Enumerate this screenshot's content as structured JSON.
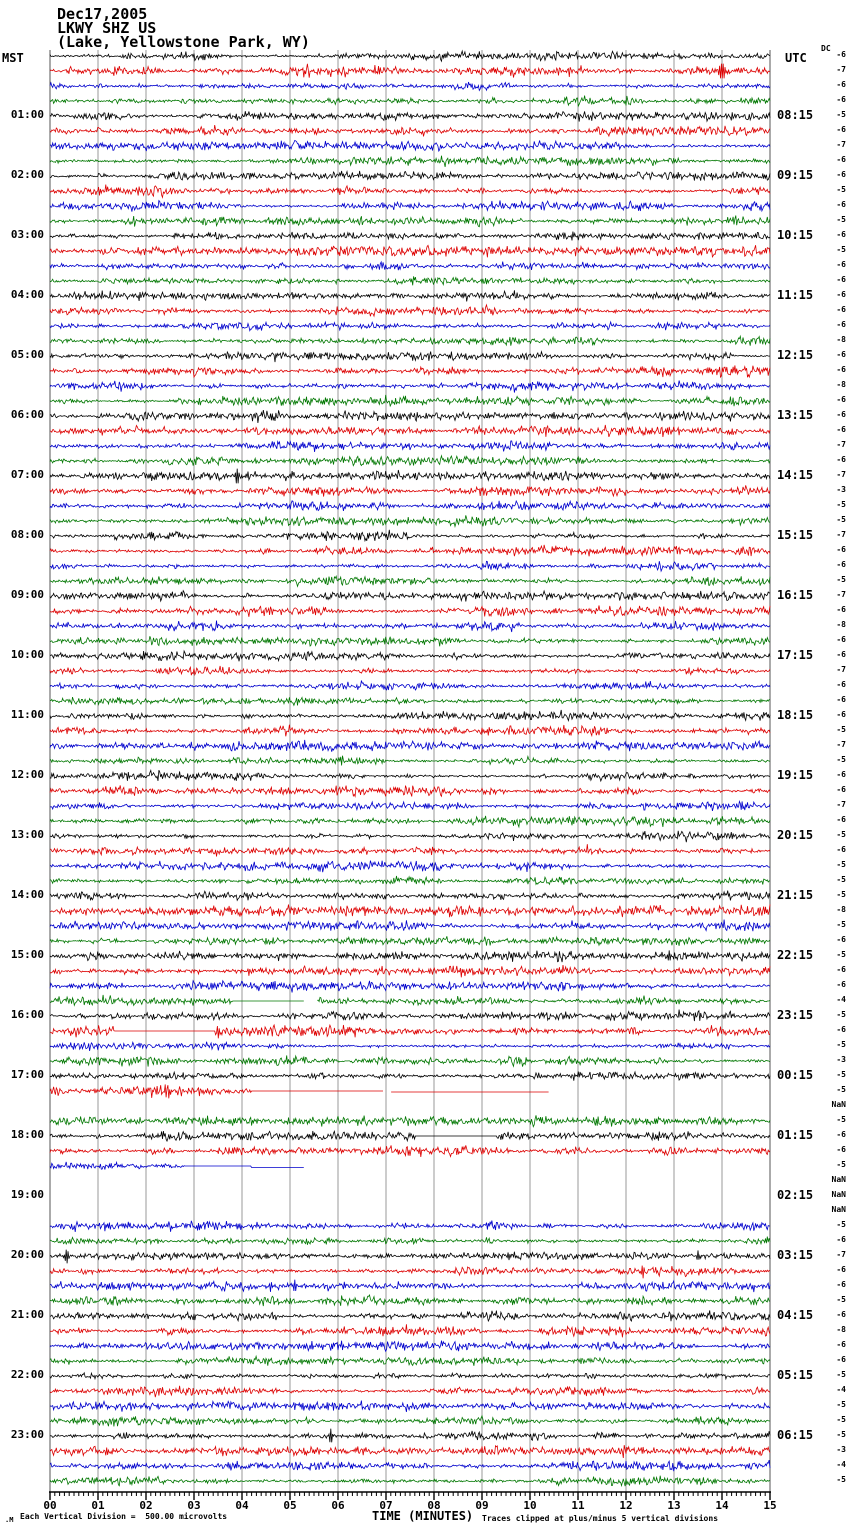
{
  "header": {
    "date": "Dec17,2005",
    "station": "LKWY SHZ US",
    "location": "(Lake, Yellowstone Park, WY)"
  },
  "columns": {
    "left_header": "MST",
    "right_header": "UTC",
    "dc_header": "DC"
  },
  "footer": {
    "corner_glyph": ".M",
    "scale_note": "Each Vertical Division =  500.00 microvolts",
    "axis_label": "TIME (MINUTES)",
    "clip_note": "Traces clipped at plus/minus 5 vertical divisions"
  },
  "chart_data": {
    "type": "line",
    "subtype": "helicorder-seismogram",
    "title": "LKWY SHZ US (Lake, Yellowstone Park, WY) Dec17,2005",
    "xlabel": "TIME (MINUTES)",
    "x_range_minutes": [
      0,
      15
    ],
    "x_ticks": [
      "00",
      "01",
      "02",
      "03",
      "04",
      "05",
      "06",
      "07",
      "08",
      "09",
      "10",
      "11",
      "12",
      "13",
      "14",
      "15"
    ],
    "minor_ticks_per_minute": 10,
    "minutes_per_row": 15,
    "grid": "vertical lines every minute",
    "scale": "Each Vertical Division = 500.00 microvolts",
    "clip": "Traces clipped at plus/minus 5 vertical divisions",
    "trace_colors": {
      "black": "#000000",
      "red": "#dd0000",
      "blue": "#0000cc",
      "green": "#007700"
    },
    "color_cycle": [
      "black",
      "red",
      "blue",
      "green"
    ],
    "rows": [
      {
        "dc": "-6"
      },
      {
        "dc": "-7",
        "ev": [
          {
            "t": "spike",
            "m": 14.0,
            "amp": 13,
            "w": 0.1
          }
        ]
      },
      {
        "dc": "-6"
      },
      {
        "dc": "-6"
      },
      {
        "mst": "01:00",
        "utc": "08:15",
        "dc": "-5"
      },
      {
        "dc": "-6"
      },
      {
        "dc": "-7"
      },
      {
        "dc": "-6"
      },
      {
        "mst": "02:00",
        "utc": "09:15",
        "dc": "-6"
      },
      {
        "dc": "-5"
      },
      {
        "dc": "-6"
      },
      {
        "dc": "-5"
      },
      {
        "mst": "03:00",
        "utc": "10:15",
        "dc": "-6"
      },
      {
        "dc": "-5"
      },
      {
        "dc": "-6"
      },
      {
        "dc": "-6"
      },
      {
        "mst": "04:00",
        "utc": "11:15",
        "dc": "-6"
      },
      {
        "dc": "-6"
      },
      {
        "dc": "-6"
      },
      {
        "dc": "-8"
      },
      {
        "mst": "05:00",
        "utc": "12:15",
        "dc": "-6"
      },
      {
        "dc": "-6"
      },
      {
        "dc": "-8"
      },
      {
        "dc": "-6"
      },
      {
        "mst": "06:00",
        "utc": "13:15",
        "dc": "-6",
        "ev": [
          {
            "t": "burst",
            "a": 4.2,
            "b": 5.2,
            "k": 1.7
          }
        ]
      },
      {
        "dc": "-6"
      },
      {
        "dc": "-7"
      },
      {
        "dc": "-6"
      },
      {
        "mst": "07:00",
        "utc": "14:15",
        "dc": "-7",
        "ev": [
          {
            "t": "spike",
            "m": 3.9,
            "amp": 11,
            "w": 0.06
          }
        ]
      },
      {
        "dc": "-3"
      },
      {
        "dc": "-5"
      },
      {
        "dc": "-5"
      },
      {
        "mst": "08:00",
        "utc": "15:15",
        "dc": "-7"
      },
      {
        "dc": "-6"
      },
      {
        "dc": "-6"
      },
      {
        "dc": "-5"
      },
      {
        "mst": "09:00",
        "utc": "16:15",
        "dc": "-7"
      },
      {
        "dc": "-6"
      },
      {
        "dc": "-8"
      },
      {
        "dc": "-6"
      },
      {
        "mst": "10:00",
        "utc": "17:15",
        "dc": "-6"
      },
      {
        "dc": "-7"
      },
      {
        "dc": "-6"
      },
      {
        "dc": "-6"
      },
      {
        "mst": "11:00",
        "utc": "18:15",
        "dc": "-6"
      },
      {
        "dc": "-5"
      },
      {
        "dc": "-7"
      },
      {
        "dc": "-5"
      },
      {
        "mst": "12:00",
        "utc": "19:15",
        "dc": "-6"
      },
      {
        "dc": "-6"
      },
      {
        "dc": "-7"
      },
      {
        "dc": "-6"
      },
      {
        "mst": "13:00",
        "utc": "20:15",
        "dc": "-5"
      },
      {
        "dc": "-6"
      },
      {
        "dc": "-5"
      },
      {
        "dc": "-5"
      },
      {
        "mst": "14:00",
        "utc": "21:15",
        "dc": "-5"
      },
      {
        "dc": "-8"
      },
      {
        "dc": "-5"
      },
      {
        "dc": "-6"
      },
      {
        "mst": "15:00",
        "utc": "22:15",
        "dc": "-5",
        "ev": [
          {
            "t": "spike",
            "m": 12.9,
            "amp": 7,
            "w": 0.05
          }
        ]
      },
      {
        "dc": "-6"
      },
      {
        "dc": "-6"
      },
      {
        "dc": "-4",
        "ev": [
          {
            "t": "flat",
            "a": 3.8,
            "b": 5.3
          },
          {
            "t": "blank",
            "a": 5.3,
            "b": 5.55
          }
        ]
      },
      {
        "mst": "16:00",
        "utc": "23:15",
        "dc": "-5",
        "ev": [
          {
            "t": "burst",
            "a": 13.0,
            "b": 14.2,
            "k": 1.7
          }
        ]
      },
      {
        "dc": "-6",
        "ev": [
          {
            "t": "flat",
            "a": 1.35,
            "b": 3.45
          },
          {
            "t": "spike",
            "m": 3.5,
            "amp": 9,
            "w": 0.04
          }
        ]
      },
      {
        "dc": "-5"
      },
      {
        "dc": "-3"
      },
      {
        "mst": "17:00",
        "utc": "00:15",
        "dc": "-5"
      },
      {
        "dc": "-5",
        "ev": [
          {
            "t": "burst",
            "a": 0,
            "b": 2.5,
            "k": 1.7
          },
          {
            "t": "flat",
            "a": 4.2,
            "b": 6.95
          },
          {
            "t": "blank",
            "a": 6.95,
            "b": 7.1
          },
          {
            "t": "flat",
            "a": 7.1,
            "b": 10.4,
            "off": 1
          },
          {
            "t": "blank",
            "a": 10.4,
            "b": 15
          }
        ]
      },
      {
        "dc": "NaN",
        "ev": [
          {
            "t": "blank",
            "a": 0,
            "b": 15
          }
        ]
      },
      {
        "dc": "-5"
      },
      {
        "mst": "18:00",
        "utc": "01:15",
        "dc": "-6",
        "ev": [
          {
            "t": "flat",
            "a": 7.6,
            "b": 9.3
          }
        ]
      },
      {
        "dc": "-6"
      },
      {
        "dc": "-5",
        "ev": [
          {
            "t": "flat",
            "a": 2.8,
            "b": 4.2
          },
          {
            "t": "flat",
            "a": 4.2,
            "b": 5.3,
            "off": 1.5
          },
          {
            "t": "blank",
            "a": 5.3,
            "b": 15
          }
        ]
      },
      {
        "dc": "NaN",
        "ev": [
          {
            "t": "blank",
            "a": 0,
            "b": 15
          }
        ]
      },
      {
        "mst": "19:00",
        "utc": "02:15",
        "dc": "NaN",
        "ev": [
          {
            "t": "blank",
            "a": 0,
            "b": 15
          }
        ]
      },
      {
        "dc": "NaN",
        "ev": [
          {
            "t": "blank",
            "a": 0,
            "b": 15
          }
        ]
      },
      {
        "dc": "-5"
      },
      {
        "dc": "-6"
      },
      {
        "mst": "20:00",
        "utc": "03:15",
        "dc": "-7",
        "ev": [
          {
            "t": "spike",
            "m": 0.35,
            "amp": 10,
            "w": 0.06
          },
          {
            "t": "spike",
            "m": 13.5,
            "amp": 7,
            "w": 0.04
          }
        ]
      },
      {
        "dc": "-6",
        "ev": [
          {
            "t": "spike",
            "m": 12.35,
            "amp": 9,
            "w": 0.05
          }
        ]
      },
      {
        "dc": "-6",
        "ev": [
          {
            "t": "spike",
            "m": 4.6,
            "amp": 7,
            "w": 0.04
          },
          {
            "t": "spike",
            "m": 5.1,
            "amp": 8,
            "w": 0.05
          }
        ]
      },
      {
        "dc": "-5"
      },
      {
        "mst": "21:00",
        "utc": "04:15",
        "dc": "-6"
      },
      {
        "dc": "-8"
      },
      {
        "dc": "-6"
      },
      {
        "dc": "-6"
      },
      {
        "mst": "22:00",
        "utc": "05:15",
        "dc": "-5"
      },
      {
        "dc": "-4"
      },
      {
        "dc": "-5"
      },
      {
        "dc": "-5"
      },
      {
        "mst": "23:00",
        "utc": "06:15",
        "dc": "-5",
        "ev": [
          {
            "t": "spike",
            "m": 5.85,
            "amp": 10,
            "w": 0.05
          }
        ]
      },
      {
        "dc": "-3"
      },
      {
        "dc": "-4"
      },
      {
        "dc": "-5"
      }
    ]
  }
}
